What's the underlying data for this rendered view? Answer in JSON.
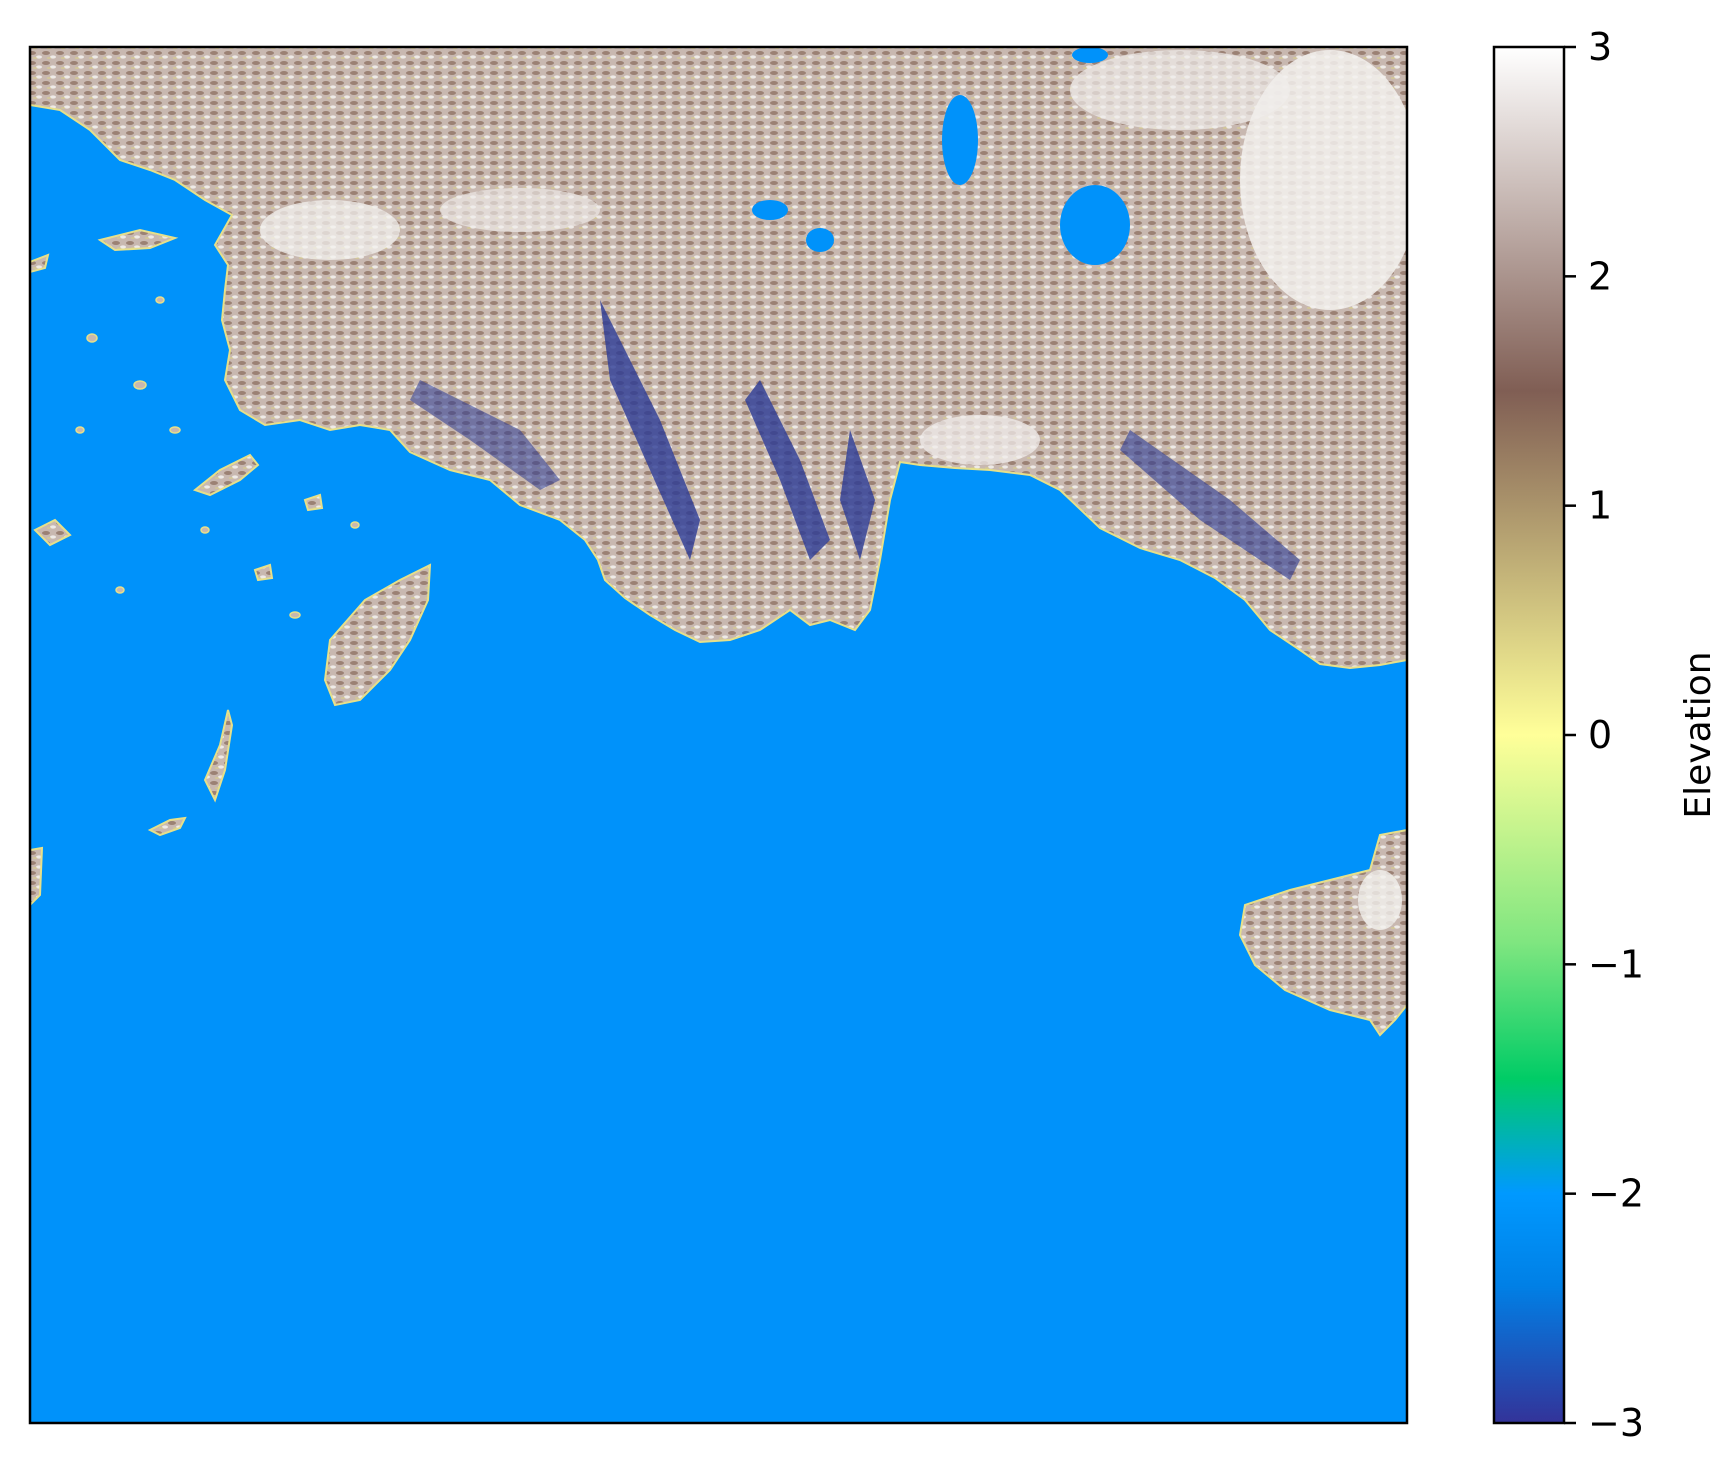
{
  "map": {
    "water_color": "#0092fa",
    "coast_color": "#e6e08a"
  },
  "colorbar": {
    "label": "Elevation",
    "range": [
      -3,
      3
    ],
    "ticks": [
      {
        "value": 3,
        "label": "3"
      },
      {
        "value": 2,
        "label": "2"
      },
      {
        "value": 1,
        "label": "1"
      },
      {
        "value": 0,
        "label": "0"
      },
      {
        "value": -1,
        "label": "−1"
      },
      {
        "value": -2,
        "label": "−2"
      },
      {
        "value": -3,
        "label": "−3"
      }
    ],
    "colormap": "terrain",
    "stops": [
      {
        "value": -3.0,
        "color": "#333399"
      },
      {
        "value": -2.4,
        "color": "#0080e6"
      },
      {
        "value": -2.0,
        "color": "#0099ff"
      },
      {
        "value": -1.5,
        "color": "#00cc66"
      },
      {
        "value": -0.9,
        "color": "#80e680"
      },
      {
        "value": 0.0,
        "color": "#ffff99"
      },
      {
        "value": 1.5,
        "color": "#805e54"
      },
      {
        "value": 3.0,
        "color": "#ffffff"
      }
    ]
  }
}
